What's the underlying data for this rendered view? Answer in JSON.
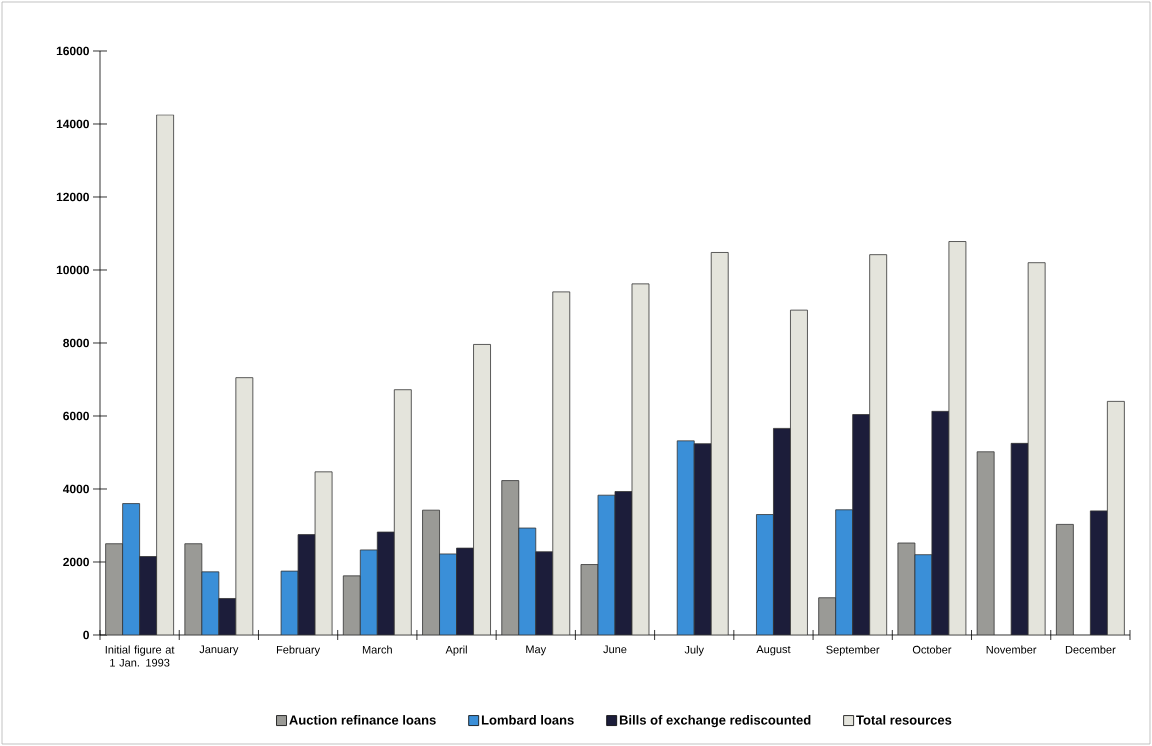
{
  "chart_data": {
    "type": "bar",
    "categories": [
      "Initial figure at 1 Jan. 1993",
      "January",
      "February",
      "March",
      "April",
      "May",
      "June",
      "July",
      "August",
      "September",
      "October",
      "November",
      "December"
    ],
    "series": [
      {
        "name": "Auction refinance loans",
        "color": "#9a9a96",
        "values": [
          2500,
          2500,
          null,
          1620,
          3420,
          4230,
          1930,
          null,
          null,
          1020,
          2520,
          5020,
          3030
        ]
      },
      {
        "name": "Lombard loans",
        "color": "#3a8fd8",
        "values": [
          3600,
          1730,
          1750,
          2330,
          2220,
          2930,
          3830,
          5320,
          3300,
          3430,
          2200,
          null,
          null
        ]
      },
      {
        "name": "Bills of exchange rediscounted",
        "color": "#1c1d3a",
        "values": [
          2150,
          1000,
          2750,
          2820,
          2380,
          2280,
          3930,
          5240,
          5660,
          6040,
          6130,
          5250,
          3400
        ]
      },
      {
        "name": "Total resources",
        "color": "#e4e4dc",
        "values": [
          14250,
          7050,
          4470,
          6720,
          7960,
          9400,
          9620,
          10480,
          8900,
          10420,
          10780,
          10200,
          6400
        ]
      }
    ],
    "ylim": [
      0,
      16000
    ],
    "yticks": [
      0,
      2000,
      4000,
      6000,
      8000,
      10000,
      12000,
      14000,
      16000
    ],
    "grid": false,
    "legend": "bottom"
  }
}
